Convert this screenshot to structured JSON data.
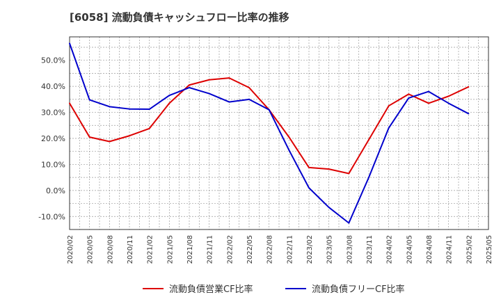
{
  "chart_data": {
    "type": "line",
    "title": "[6058]  流動負債キャッシュフロー比率の推移",
    "xlabel": "",
    "ylabel": "",
    "categories": [
      "2020/02",
      "2020/05",
      "2020/08",
      "2020/11",
      "2021/02",
      "2021/05",
      "2021/08",
      "2021/11",
      "2022/02",
      "2022/05",
      "2022/08",
      "2022/11",
      "2023/02",
      "2023/05",
      "2023/08",
      "2023/11",
      "2024/02",
      "2024/05",
      "2024/08",
      "2024/11",
      "2025/02",
      "2025/05"
    ],
    "y_ticks": [
      "-10.0%",
      "0.0%",
      "10.0%",
      "20.0%",
      "30.0%",
      "40.0%",
      "50.0%"
    ],
    "ylim": [
      -15,
      59
    ],
    "grid": true,
    "legend_position": "bottom",
    "series": [
      {
        "name": "流動負債営業CF比率",
        "color": "#dd0000",
        "values": [
          33.5,
          20.5,
          18.8,
          21.0,
          23.8,
          33.5,
          40.5,
          42.5,
          43.2,
          39.5,
          31.0,
          20.5,
          8.8,
          8.2,
          6.5,
          19.5,
          32.5,
          37.0,
          33.5,
          36.2,
          39.8,
          null
        ]
      },
      {
        "name": "流動負債フリーCF比率",
        "color": "#0000cc",
        "values": [
          56.5,
          34.8,
          32.2,
          31.3,
          31.2,
          36.5,
          39.5,
          37.2,
          34.0,
          35.0,
          31.0,
          15.5,
          1.0,
          -6.5,
          -12.5,
          5.0,
          24.0,
          35.5,
          38.0,
          33.5,
          29.5,
          null
        ]
      }
    ]
  }
}
